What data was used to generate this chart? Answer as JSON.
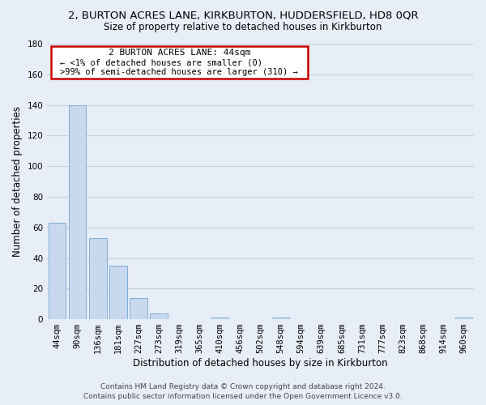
{
  "title": "2, BURTON ACRES LANE, KIRKBURTON, HUDDERSFIELD, HD8 0QR",
  "subtitle": "Size of property relative to detached houses in Kirkburton",
  "xlabel": "Distribution of detached houses by size in Kirkburton",
  "ylabel": "Number of detached properties",
  "bar_labels": [
    "44sqm",
    "90sqm",
    "136sqm",
    "181sqm",
    "227sqm",
    "273sqm",
    "319sqm",
    "365sqm",
    "410sqm",
    "456sqm",
    "502sqm",
    "548sqm",
    "594sqm",
    "639sqm",
    "685sqm",
    "731sqm",
    "777sqm",
    "823sqm",
    "868sqm",
    "914sqm",
    "960sqm"
  ],
  "bar_values": [
    63,
    140,
    53,
    35,
    14,
    4,
    0,
    0,
    1,
    0,
    0,
    1,
    0,
    0,
    0,
    0,
    0,
    0,
    0,
    0,
    1
  ],
  "bar_color": "#c8d9ef",
  "bar_edge_color": "#7dadd4",
  "ylim": [
    0,
    180
  ],
  "yticks": [
    0,
    20,
    40,
    60,
    80,
    100,
    120,
    140,
    160,
    180
  ],
  "annotation_line1": "2 BURTON ACRES LANE: 44sqm",
  "annotation_line2": "← <1% of detached houses are smaller (0)",
  "annotation_line3": ">99% of semi-detached houses are larger (310) →",
  "annotation_box_edge": "#cc0000",
  "annotation_box_face": "white",
  "footer_line1": "Contains HM Land Registry data © Crown copyright and database right 2024.",
  "footer_line2": "Contains public sector information licensed under the Open Government Licence v3.0.",
  "background_color": "#e8eef8",
  "grid_color": "#c8d0e0",
  "title_fontsize": 9.5,
  "subtitle_fontsize": 8.5,
  "axis_label_fontsize": 8.5,
  "tick_fontsize": 7.5,
  "footer_fontsize": 6.5,
  "annotation_fontsize": 8
}
